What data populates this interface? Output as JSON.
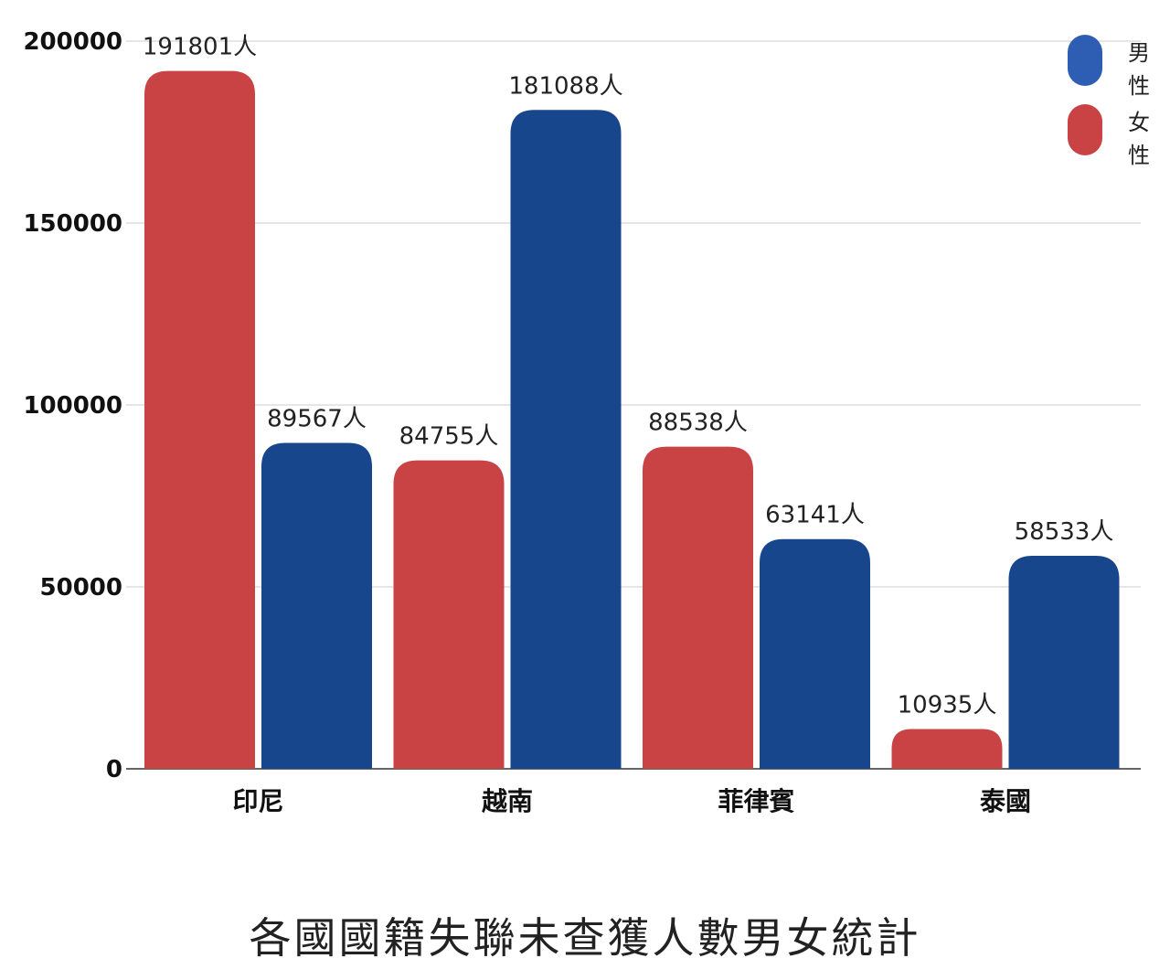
{
  "chart_data": {
    "type": "bar",
    "title": "各國國籍失聯未查獲人數男女統計",
    "categories": [
      "印尼",
      "越南",
      "菲律賓",
      "泰國"
    ],
    "series": [
      {
        "name": "女性",
        "color": "#c94244",
        "values": [
          191801,
          84755,
          88538,
          10935
        ]
      },
      {
        "name": "男性",
        "color": "#18468c",
        "values": [
          89567,
          181088,
          63141,
          58533
        ]
      }
    ],
    "value_suffix": "人",
    "ylim": [
      0,
      200000
    ],
    "yticks": [
      0,
      50000,
      100000,
      150000,
      200000
    ],
    "grid": true,
    "legend_position": "top-right",
    "legend": [
      {
        "label": "男性",
        "color": "#2e5eb3"
      },
      {
        "label": "女性",
        "color": "#c94244"
      }
    ]
  }
}
